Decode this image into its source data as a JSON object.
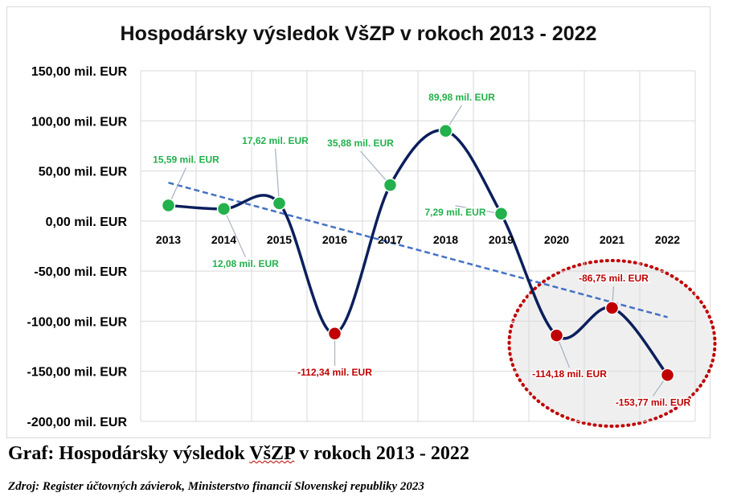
{
  "chart_data": {
    "type": "line",
    "title": "Hospodársky výsledok VšZP v rokoch 2013 - 2022",
    "categories": [
      "2013",
      "2014",
      "2015",
      "2016",
      "2017",
      "2018",
      "2019",
      "2020",
      "2021",
      "2022"
    ],
    "series": [
      {
        "values": [
          15.59,
          12.08,
          17.62,
          -112.34,
          35.88,
          89.98,
          7.29,
          -114.18,
          -86.75,
          -153.77
        ],
        "data_labels": [
          "15,59 mil. EUR",
          "12,08 mil. EUR",
          "17,62 mil. EUR",
          "-112,34 mil. EUR",
          "35,88 mil. EUR",
          "89,98 mil. EUR",
          "7,29 mil. EUR",
          "-114,18 mil. EUR",
          "-86,75 mil. EUR",
          "-153,77 mil. EUR"
        ],
        "line_color": "#0b1f5c",
        "positive_color": "#22b14c",
        "negative_color": "#c00000"
      }
    ],
    "trendline": {
      "type": "linear",
      "style": "dashed",
      "color": "#4472c4"
    },
    "y_ticks": [
      150,
      100,
      50,
      0,
      -50,
      -100,
      -150,
      -200
    ],
    "y_tick_labels": [
      "150,00 mil. EUR",
      "100,00 mil. EUR",
      "50,00 mil. EUR",
      "0,00 mil. EUR",
      "-50,00 mil. EUR",
      "-100,00 mil. EUR",
      "-150,00 mil. EUR",
      "-200,00 mil. EUR"
    ],
    "ylim": [
      -200,
      150
    ],
    "grid": true,
    "highlight": {
      "years": [
        "2020",
        "2021",
        "2022"
      ],
      "style": "dotted circle",
      "color": "#c00000"
    }
  },
  "caption": {
    "before": "Graf: Hospodársky výsledok ",
    "underlined": "VšZP",
    "after": " v rokoch 2013 - 2022"
  },
  "source": "Zdroj: Register účtovných závierok, Ministerstvo financií Slovenskej republiky 2023"
}
